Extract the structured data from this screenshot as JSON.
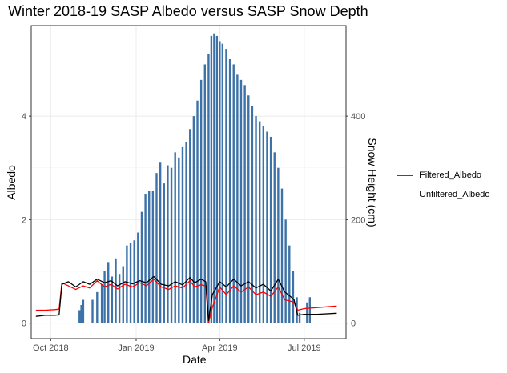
{
  "chart_data": {
    "type": "bar+line",
    "title": "Winter 2018-19 SASP Albedo versus SASP Snow Depth",
    "xlabel": "Date",
    "ylabel": "Albedo",
    "y2label": "Snow Height (cm)",
    "x_range": [
      "2018-09-10",
      "2019-08-15"
    ],
    "ylim": [
      -0.3,
      5.75
    ],
    "y2lim": [
      -30,
      575
    ],
    "x_ticks": [
      {
        "date": "2018-10-01",
        "label": "Oct 2018"
      },
      {
        "date": "2019-01-01",
        "label": "Jan 2019"
      },
      {
        "date": "2019-04-01",
        "label": "Apr 2019"
      },
      {
        "date": "2019-07-01",
        "label": "Jul 2019"
      }
    ],
    "y_ticks": [
      0,
      2,
      4
    ],
    "y2_ticks": [
      0,
      200,
      400
    ],
    "grid": true,
    "legend_position": "right",
    "bar_color": "#3d72a8",
    "snow_depth": {
      "name": "Snow Height (cm)",
      "dates": [
        "2018-11-01",
        "2018-11-03",
        "2018-11-05",
        "2018-11-15",
        "2018-11-20",
        "2018-11-25",
        "2018-11-28",
        "2018-12-02",
        "2018-12-06",
        "2018-12-10",
        "2018-12-14",
        "2018-12-18",
        "2018-12-22",
        "2018-12-26",
        "2018-12-30",
        "2019-01-03",
        "2019-01-07",
        "2019-01-11",
        "2019-01-15",
        "2019-01-19",
        "2019-01-23",
        "2019-01-27",
        "2019-01-31",
        "2019-02-04",
        "2019-02-08",
        "2019-02-12",
        "2019-02-16",
        "2019-02-20",
        "2019-02-24",
        "2019-02-28",
        "2019-03-04",
        "2019-03-08",
        "2019-03-12",
        "2019-03-16",
        "2019-03-20",
        "2019-03-23",
        "2019-03-26",
        "2019-03-29",
        "2019-04-01",
        "2019-04-04",
        "2019-04-08",
        "2019-04-12",
        "2019-04-16",
        "2019-04-20",
        "2019-04-24",
        "2019-04-28",
        "2019-05-02",
        "2019-05-06",
        "2019-05-10",
        "2019-05-14",
        "2019-05-18",
        "2019-05-22",
        "2019-05-26",
        "2019-05-30",
        "2019-06-03",
        "2019-06-07",
        "2019-06-11",
        "2019-06-15",
        "2019-06-19",
        "2019-06-23",
        "2019-06-26",
        "2019-07-04",
        "2019-07-07"
      ],
      "values": [
        25,
        35,
        45,
        45,
        60,
        75,
        100,
        118,
        90,
        125,
        95,
        110,
        150,
        155,
        160,
        175,
        215,
        250,
        255,
        255,
        290,
        310,
        270,
        305,
        300,
        330,
        320,
        340,
        350,
        375,
        400,
        430,
        470,
        500,
        520,
        555,
        560,
        555,
        545,
        540,
        530,
        510,
        500,
        480,
        470,
        460,
        440,
        420,
        400,
        390,
        380,
        370,
        360,
        330,
        300,
        260,
        200,
        150,
        100,
        50,
        20,
        40,
        50
      ]
    },
    "series": [
      {
        "name": "Filtered_Albedo",
        "color": "#ff0000",
        "dates": [
          "2018-09-15",
          "2018-09-25",
          "2018-10-05",
          "2018-10-10",
          "2018-10-13",
          "2018-10-20",
          "2018-10-28",
          "2018-11-05",
          "2018-11-12",
          "2018-11-20",
          "2018-11-28",
          "2018-12-05",
          "2018-12-12",
          "2018-12-20",
          "2018-12-28",
          "2019-01-05",
          "2019-01-12",
          "2019-01-20",
          "2019-01-28",
          "2019-02-05",
          "2019-02-12",
          "2019-02-20",
          "2019-02-28",
          "2019-03-05",
          "2019-03-12",
          "2019-03-17",
          "2019-03-20",
          "2019-03-24",
          "2019-04-01",
          "2019-04-08",
          "2019-04-16",
          "2019-04-24",
          "2019-05-02",
          "2019-05-10",
          "2019-05-18",
          "2019-05-26",
          "2019-06-03",
          "2019-06-10",
          "2019-06-17",
          "2019-06-20",
          "2019-06-24",
          "2019-07-01",
          "2019-07-15",
          "2019-08-05"
        ],
        "values": [
          0.25,
          0.25,
          0.26,
          0.27,
          0.78,
          0.72,
          0.65,
          0.72,
          0.68,
          0.82,
          0.7,
          0.75,
          0.66,
          0.75,
          0.7,
          0.78,
          0.72,
          0.85,
          0.7,
          0.65,
          0.72,
          0.68,
          0.82,
          0.7,
          0.74,
          0.72,
          0.02,
          0.3,
          0.7,
          0.55,
          0.72,
          0.6,
          0.7,
          0.55,
          0.6,
          0.52,
          0.7,
          0.45,
          0.42,
          0.4,
          0.25,
          0.28,
          0.3,
          0.33
        ]
      },
      {
        "name": "Unfiltered_Albedo",
        "color": "#000000",
        "dates": [
          "2018-09-15",
          "2018-09-25",
          "2018-10-05",
          "2018-10-10",
          "2018-10-13",
          "2018-10-20",
          "2018-10-28",
          "2018-11-05",
          "2018-11-12",
          "2018-11-20",
          "2018-11-28",
          "2018-12-05",
          "2018-12-12",
          "2018-12-20",
          "2018-12-28",
          "2019-01-05",
          "2019-01-12",
          "2019-01-20",
          "2019-01-28",
          "2019-02-05",
          "2019-02-12",
          "2019-02-20",
          "2019-02-28",
          "2019-03-05",
          "2019-03-12",
          "2019-03-17",
          "2019-03-20",
          "2019-03-24",
          "2019-04-01",
          "2019-04-08",
          "2019-04-16",
          "2019-04-24",
          "2019-05-02",
          "2019-05-10",
          "2019-05-18",
          "2019-05-26",
          "2019-06-03",
          "2019-06-10",
          "2019-06-17",
          "2019-06-20",
          "2019-06-24",
          "2019-07-01",
          "2019-07-15",
          "2019-08-05"
        ],
        "values": [
          0.13,
          0.15,
          0.15,
          0.16,
          0.75,
          0.8,
          0.7,
          0.8,
          0.75,
          0.85,
          0.78,
          0.82,
          0.72,
          0.8,
          0.76,
          0.82,
          0.78,
          0.9,
          0.75,
          0.72,
          0.8,
          0.74,
          0.88,
          0.78,
          0.85,
          0.8,
          0.05,
          0.55,
          0.8,
          0.7,
          0.85,
          0.72,
          0.8,
          0.68,
          0.75,
          0.62,
          0.85,
          0.6,
          0.5,
          0.45,
          0.15,
          0.17,
          0.17,
          0.19
        ]
      }
    ]
  }
}
